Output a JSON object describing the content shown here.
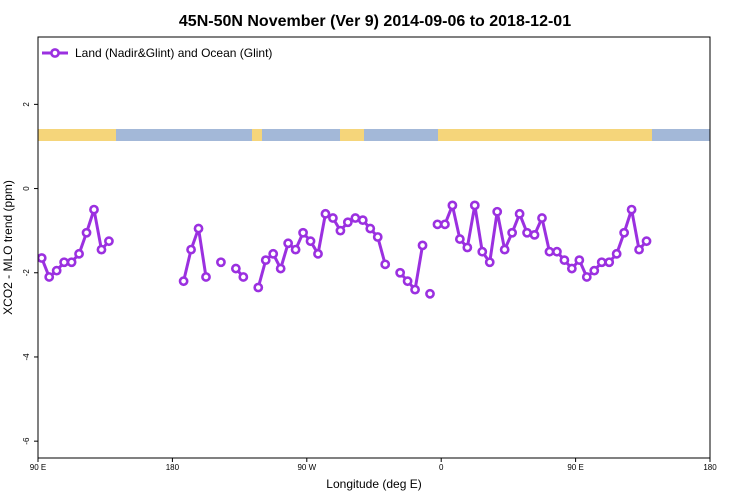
{
  "chart_data": {
    "type": "line",
    "title": "45N-50N November (Ver 9)   2014-09-06 to 2018-12-01",
    "xlabel": "Longitude (deg E)",
    "ylabel": "XCO2 - MLO trend (ppm)",
    "xlim": [
      90,
      450
    ],
    "ylim": [
      -6.4,
      3.6
    ],
    "x_ticks": [
      {
        "value": 90,
        "label": "90 E"
      },
      {
        "value": 180,
        "label": "180"
      },
      {
        "value": 270,
        "label": "90 W"
      },
      {
        "value": 360,
        "label": "0"
      },
      {
        "value": 450,
        "label": "90 E"
      },
      {
        "value": 540,
        "label": "180"
      }
    ],
    "y_ticks": [
      {
        "value": 2,
        "label": "2"
      },
      {
        "value": 0,
        "label": "0"
      },
      {
        "value": -2,
        "label": "-2"
      },
      {
        "value": -4,
        "label": "-4"
      },
      {
        "value": -6,
        "label": "-6"
      }
    ],
    "legend": {
      "position": "top-left"
    },
    "series_color": "#9b30e0",
    "land_color": "#f5d57a",
    "ocean_color": "#a3b8d8",
    "series": [
      {
        "name": "Land (Nadir&Glint) and Ocean (Glint)",
        "segments": [
          {
            "x": [
              92.5,
              97.5,
              102.5,
              107.5,
              112.5,
              117.5,
              122.5,
              127.5,
              132.5,
              137.5,
              142.5
            ],
            "y": [
              -1.65,
              -2.1,
              -1.95,
              -1.75,
              -1.75,
              -1.55,
              -1.05,
              -0.5,
              -1.45,
              -1.25,
              null
            ]
          },
          {
            "x": [
              187.5,
              192.5,
              197.5,
              202.5
            ],
            "y": [
              -2.2,
              -1.45,
              -0.95,
              -2.1
            ]
          },
          {
            "x": [
              212.5
            ],
            "y": [
              -1.75
            ]
          },
          {
            "x": [
              222.5,
              227.5
            ],
            "y": [
              -1.9,
              -2.1
            ]
          },
          {
            "x": [
              237.5,
              242.5,
              247.5,
              252.5,
              257.5,
              262.5,
              267.5,
              272.5,
              277.5,
              282.5,
              287.5,
              292.5,
              297.5,
              302.5,
              307.5,
              312.5,
              317.5,
              322.5,
              327.5
            ],
            "y": [
              -2.35,
              -1.7,
              -1.55,
              -1.9,
              -1.3,
              -1.45,
              -1.05,
              -1.25,
              -1.55,
              -0.6,
              -0.7,
              -1.0,
              -0.8,
              -0.7,
              -0.75,
              -0.95,
              -1.15,
              -1.8,
              null
            ]
          },
          {
            "x": [
              332.5,
              337.5,
              342.5,
              347.5
            ],
            "y": [
              -2.0,
              -2.2,
              -2.4,
              -1.35
            ]
          },
          {
            "x": [
              352.5
            ],
            "y": [
              -2.5
            ]
          },
          {
            "x": [
              357.5,
              362.5,
              367.5,
              372.5,
              377.5,
              382.5,
              387.5,
              392.5,
              397.5,
              402.5,
              407.5,
              412.5,
              417.5,
              422.5,
              427.5,
              432.5,
              437.5,
              442.5,
              447.5,
              452.5,
              457.5,
              462.5,
              467.5,
              472.5,
              477.5,
              482.5,
              487.5,
              492.5,
              497.5,
              502.5
            ],
            "y": [
              -0.85,
              -0.85,
              -0.4,
              -1.2,
              -1.4,
              -0.4,
              -1.5,
              -1.75,
              -0.55,
              -1.45,
              -1.05,
              -0.6,
              -1.05,
              -1.1,
              -0.7,
              -1.5,
              -1.5,
              -1.7,
              -1.9,
              -1.7,
              -2.1,
              -1.95,
              -1.75,
              -1.75,
              -1.55,
              -1.05,
              -0.5,
              -1.45,
              -1.25,
              null
            ]
          }
        ]
      }
    ]
  }
}
